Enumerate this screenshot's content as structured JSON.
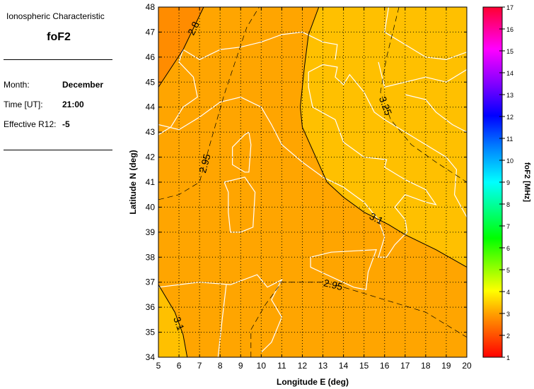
{
  "panel": {
    "heading": "Ionospheric Characteristic",
    "characteristic": "foF2",
    "month_label": "Month:",
    "month_value": "December",
    "time_label": "Time [UT]:",
    "time_value": "21:00",
    "r12_label": "Effective R12:",
    "r12_value": "-5"
  },
  "chart_data": {
    "type": "contour-map",
    "xlabel": "Longitude E (deg)",
    "ylabel": "Latitude N (deg)",
    "xlim": [
      5,
      20
    ],
    "ylim": [
      34,
      48
    ],
    "xticks": [
      5,
      6,
      7,
      8,
      9,
      10,
      11,
      12,
      13,
      14,
      15,
      16,
      17,
      18,
      19,
      20
    ],
    "yticks": [
      34,
      35,
      36,
      37,
      38,
      39,
      40,
      41,
      42,
      43,
      44,
      45,
      46,
      47,
      48
    ],
    "grid": true,
    "colorbar": {
      "label": "foF2 [MHz]",
      "range": [
        1,
        17
      ],
      "ticks": [
        1,
        2,
        3,
        4,
        5,
        6,
        7,
        8,
        9,
        10,
        11,
        12,
        13,
        14,
        15,
        16,
        17
      ]
    },
    "region_colors": {
      "below_2.8": "#FF8C00",
      "2.8_to_3.1": "#FFA500",
      "above_3.1": "#FFC000"
    },
    "contours": [
      {
        "label": "2.8",
        "style": "solid",
        "points": [
          [
            5,
            44.8
          ],
          [
            6.2,
            46.3
          ],
          [
            7.2,
            48
          ]
        ]
      },
      {
        "label": "2.95",
        "style": "dashed",
        "points": [
          [
            5,
            40.3
          ],
          [
            6,
            40.5
          ],
          [
            7,
            41
          ],
          [
            7.5,
            42.5
          ],
          [
            8.2,
            44.5
          ],
          [
            9.3,
            47.2
          ],
          [
            9.9,
            48
          ]
        ]
      },
      {
        "label": "3.1",
        "style": "solid",
        "points": [
          [
            12.8,
            48
          ],
          [
            12.3,
            46.9
          ],
          [
            12.1,
            45.6
          ],
          [
            11.9,
            44
          ],
          [
            12,
            43.2
          ],
          [
            12.6,
            42.1
          ],
          [
            13.2,
            41
          ],
          [
            14,
            40.4
          ],
          [
            15,
            39.8
          ],
          [
            16.2,
            39.3
          ],
          [
            17,
            38.9
          ],
          [
            18.5,
            38.3
          ],
          [
            20,
            37.6
          ]
        ]
      },
      {
        "label": "3.25",
        "style": "dashed",
        "points": [
          [
            16.7,
            48
          ],
          [
            16.1,
            46
          ],
          [
            15.8,
            44.6
          ],
          [
            16.3,
            43.5
          ],
          [
            17.3,
            42.5
          ],
          [
            18.5,
            41.8
          ],
          [
            20,
            41
          ]
        ]
      },
      {
        "label": "2.95",
        "style": "dashed",
        "points": [
          [
            9.5,
            34
          ],
          [
            9.5,
            35.1
          ],
          [
            10.2,
            36.1
          ],
          [
            11,
            37
          ],
          [
            13,
            37
          ],
          [
            14,
            36.8
          ],
          [
            16,
            36.3
          ],
          [
            18,
            35.8
          ],
          [
            20,
            34.8
          ]
        ]
      },
      {
        "label": "3.1",
        "style": "solid",
        "points": [
          [
            5,
            36.9
          ],
          [
            5.8,
            35.8
          ],
          [
            6.2,
            34.9
          ],
          [
            6.4,
            34
          ]
        ]
      }
    ]
  }
}
